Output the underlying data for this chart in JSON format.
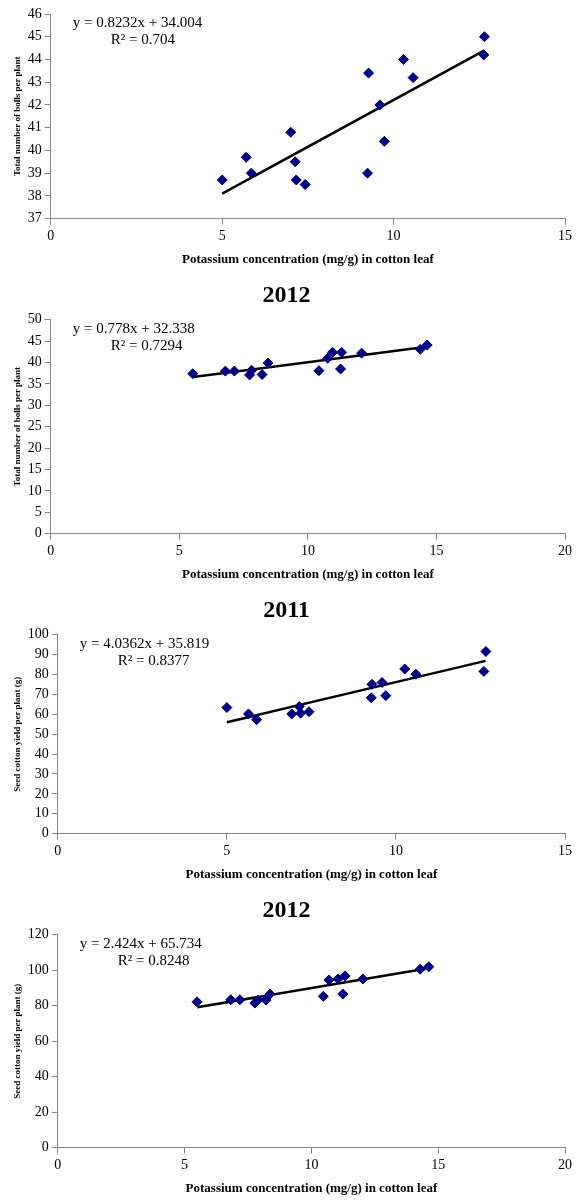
{
  "chart_data": [
    {
      "type": "scatter",
      "xlabel": "Potassium concentration (mg/g) in cotton leaf",
      "ylabel": "Total number of bolls per plant",
      "annotations": [
        "y = 0.8232x + 34.004",
        "R² = 0.704"
      ],
      "xlim": [
        0,
        15
      ],
      "xticks": [
        0,
        5,
        10,
        15
      ],
      "ylim": [
        37,
        46
      ],
      "yticks": [
        37,
        38,
        39,
        40,
        41,
        42,
        43,
        44,
        45,
        46
      ],
      "grid": false,
      "legend": false,
      "series": [
        {
          "type": "scatter",
          "marker": "diamond",
          "color": "#00008b",
          "x": [
            5.0,
            5.7,
            5.85,
            7.0,
            7.13,
            7.16,
            7.42,
            9.27,
            9.24,
            9.6,
            9.73,
            10.29,
            10.57,
            12.65,
            12.63
          ],
          "values": [
            38.7,
            39.7,
            39.0,
            40.8,
            39.5,
            38.7,
            38.5,
            43.4,
            39.0,
            42.0,
            40.4,
            44.0,
            43.2,
            45.0,
            44.2
          ]
        },
        {
          "type": "line",
          "marker": "none",
          "color": "#000000",
          "x": [
            5.0,
            12.65
          ],
          "values": [
            38.1,
            44.4
          ]
        }
      ]
    },
    {
      "type": "scatter",
      "title": "2012",
      "xlabel": "Potassium concentration (mg/g) in cotton leaf",
      "ylabel": "Total number of bolls per plant",
      "annotations": [
        "y = 0.778x + 32.338",
        "R² = 0.7294"
      ],
      "xlim": [
        0,
        20
      ],
      "xticks": [
        0,
        5,
        10,
        15,
        20
      ],
      "ylim": [
        0,
        50
      ],
      "yticks": [
        0,
        5,
        10,
        15,
        20,
        25,
        30,
        35,
        40,
        45,
        50
      ],
      "grid": false,
      "legend": false,
      "series": [
        {
          "type": "scatter",
          "marker": "diamond",
          "color": "#00008b",
          "x": [
            5.52,
            6.79,
            7.14,
            7.73,
            7.81,
            8.22,
            8.45,
            10.43,
            10.77,
            10.96,
            11.31,
            11.27,
            12.09,
            14.37,
            14.64
          ],
          "values": [
            37.4,
            38.0,
            38.0,
            37.1,
            38.2,
            37.2,
            39.9,
            38.1,
            41.0,
            42.4,
            42.4,
            38.5,
            42.2,
            43.1,
            44.1
          ]
        },
        {
          "type": "line",
          "marker": "none",
          "color": "#000000",
          "x": [
            5.52,
            14.4
          ],
          "values": [
            36.6,
            43.5
          ]
        }
      ]
    },
    {
      "type": "scatter",
      "title": "2011",
      "xlabel": "Potassium concentration (mg/g) in cotton leaf",
      "ylabel": "Seed cotton yield per plant (g)",
      "annotations": [
        "y = 4.0362x + 35.819",
        "R² = 0.8377"
      ],
      "xlim": [
        0,
        15
      ],
      "xticks": [
        0,
        5,
        10,
        15
      ],
      "ylim": [
        0,
        100
      ],
      "yticks": [
        0,
        10,
        20,
        30,
        40,
        50,
        60,
        70,
        80,
        90,
        100
      ],
      "grid": false,
      "legend": false,
      "series": [
        {
          "type": "scatter",
          "marker": "diamond",
          "color": "#00008b",
          "x": [
            5.0,
            5.64,
            5.88,
            6.92,
            7.14,
            7.18,
            7.43,
            9.27,
            9.29,
            9.59,
            9.7,
            10.26,
            10.59,
            12.66,
            12.6
          ],
          "values": [
            63.4,
            60.2,
            57.3,
            60.2,
            63.9,
            60.6,
            61.3,
            68.3,
            75.1,
            76.0,
            69.4,
            82.8,
            80.2,
            91.6,
            81.6
          ]
        },
        {
          "type": "line",
          "marker": "none",
          "color": "#000000",
          "x": [
            5.0,
            12.65
          ],
          "values": [
            56.0,
            86.9
          ]
        }
      ]
    },
    {
      "type": "scatter",
      "title": "2012",
      "xlabel": "Potassium concentration (mg/g) in cotton leaf",
      "ylabel": "Seed cotton yield per plant (g)",
      "annotations": [
        "y = 2.424x + 65.734",
        "R² = 0.8248"
      ],
      "xlim": [
        0,
        20
      ],
      "xticks": [
        0,
        5,
        10,
        15,
        20
      ],
      "ylim": [
        0,
        120
      ],
      "yticks": [
        0,
        20,
        40,
        60,
        80,
        100,
        120
      ],
      "grid": false,
      "legend": false,
      "series": [
        {
          "type": "scatter",
          "marker": "diamond",
          "color": "#00008b",
          "x": [
            5.49,
            6.82,
            7.18,
            7.77,
            7.89,
            8.21,
            8.37,
            10.47,
            10.69,
            11.05,
            11.33,
            11.24,
            12.03,
            14.29,
            14.63
          ],
          "values": [
            82.2,
            83.4,
            83.4,
            81.5,
            83.2,
            83.2,
            86.6,
            85.3,
            94.5,
            95.1,
            96.8,
            86.6,
            95.1,
            100.6,
            102.0
          ]
        },
        {
          "type": "line",
          "marker": "none",
          "color": "#000000",
          "x": [
            5.5,
            14.5
          ],
          "values": [
            79.1,
            100.9
          ]
        }
      ]
    }
  ]
}
